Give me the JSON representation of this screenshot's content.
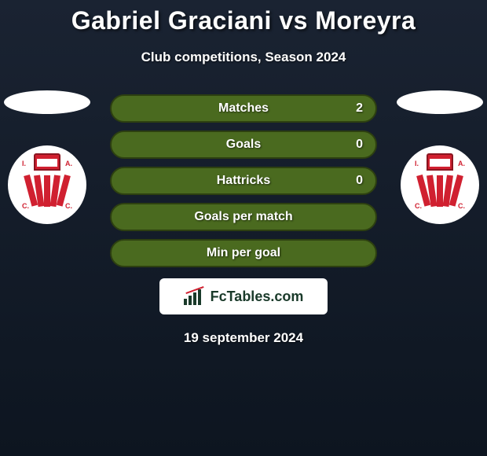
{
  "title": "Gabriel Graciani vs Moreyra",
  "subtitle": "Club competitions, Season 2024",
  "stats": [
    {
      "label": "Matches",
      "value": "2"
    },
    {
      "label": "Goals",
      "value": "0"
    },
    {
      "label": "Hattricks",
      "value": "0"
    },
    {
      "label": "Goals per match",
      "value": ""
    },
    {
      "label": "Min per goal",
      "value": ""
    }
  ],
  "branding": {
    "site_name": "FcTables.com"
  },
  "date": "19 september 2024",
  "colors": {
    "stat_bg": "#4a6a1f",
    "stat_border": "#2d4010",
    "badge_red": "#d02030",
    "text": "#ffffff",
    "logo_box_bg": "#ffffff"
  },
  "badges": {
    "left_club_initials": "I.A.C.C.",
    "right_club_initials": "I.A.C.C."
  }
}
